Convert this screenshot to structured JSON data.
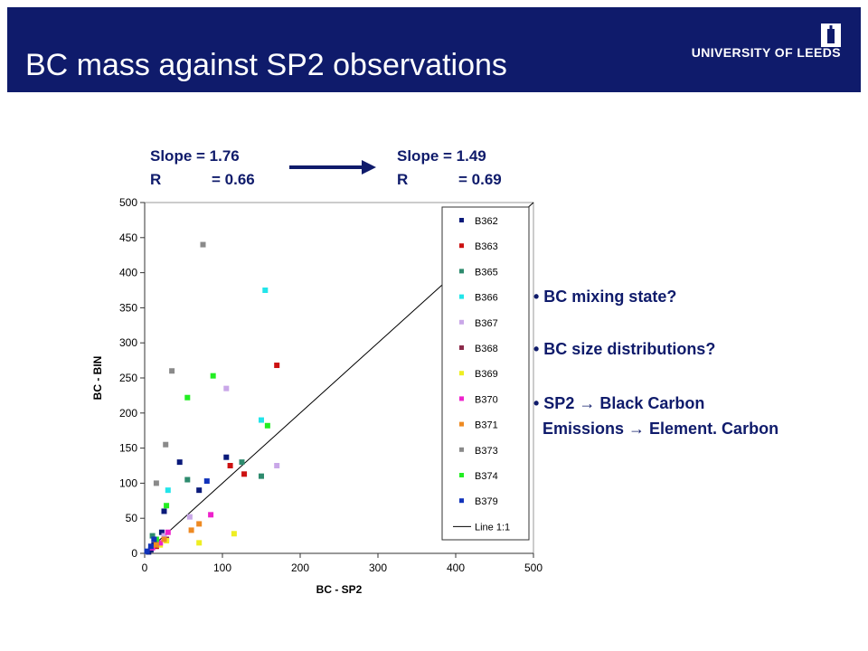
{
  "slide": {
    "title": "BC mass against SP2 observations",
    "logo_text": "UNIVERSITY OF LEEDS",
    "logo_icon": "leeds-tower-icon"
  },
  "stats": {
    "before": {
      "slope_label": "Slope = 1.76",
      "r_label_left": "R",
      "r_label_right": "= 0.66"
    },
    "after": {
      "slope_label": "Slope = 1.49",
      "r_label_left": "R",
      "r_label_right": "= 0.69"
    }
  },
  "bullets": [
    "• BC mixing state?",
    "• BC size distributions?",
    "• SP2 → Black Carbon",
    "Emissions → Element. Carbon"
  ],
  "colors": {
    "header_bg": "#0f1b6b",
    "text_blue": "#0f1b6b"
  },
  "chart_data": {
    "type": "scatter",
    "xlabel": "BC - SP2",
    "ylabel": "BC - BIN",
    "xlim": [
      0,
      500
    ],
    "ylim": [
      0,
      500
    ],
    "xticks": [
      0,
      100,
      200,
      300,
      400,
      500
    ],
    "yticks": [
      0,
      50,
      100,
      150,
      200,
      250,
      300,
      350,
      400,
      450,
      500
    ],
    "legend_position": "right-inside",
    "reference_line": {
      "name": "Line 1:1",
      "from": [
        0,
        0
      ],
      "to": [
        500,
        500
      ],
      "color": "#000000"
    },
    "series": [
      {
        "name": "B362",
        "color": "#0a1a7a",
        "points": [
          [
            5,
            2
          ],
          [
            8,
            5
          ],
          [
            12,
            12
          ],
          [
            22,
            30
          ],
          [
            25,
            60
          ],
          [
            45,
            130
          ],
          [
            70,
            90
          ],
          [
            105,
            137
          ]
        ]
      },
      {
        "name": "B363",
        "color": "#cc1111",
        "points": [
          [
            110,
            125
          ],
          [
            128,
            113
          ],
          [
            170,
            268
          ],
          [
            15,
            10
          ],
          [
            25,
            22
          ]
        ]
      },
      {
        "name": "B365",
        "color": "#2e8b6e",
        "points": [
          [
            10,
            25
          ],
          [
            55,
            105
          ],
          [
            125,
            130
          ],
          [
            150,
            110
          ]
        ]
      },
      {
        "name": "B366",
        "color": "#22e5ea",
        "points": [
          [
            30,
            90
          ],
          [
            150,
            190
          ],
          [
            155,
            375
          ]
        ]
      },
      {
        "name": "B367",
        "color": "#c9a7e8",
        "points": [
          [
            25,
            25
          ],
          [
            58,
            52
          ],
          [
            105,
            235
          ],
          [
            170,
            125
          ]
        ]
      },
      {
        "name": "B368",
        "color": "#8b2a4a",
        "points": [
          [
            15,
            12
          ],
          [
            28,
            20
          ]
        ]
      },
      {
        "name": "B369",
        "color": "#eeee22",
        "points": [
          [
            20,
            12
          ],
          [
            28,
            18
          ],
          [
            70,
            15
          ],
          [
            115,
            28
          ]
        ]
      },
      {
        "name": "B370",
        "color": "#ee22cc",
        "points": [
          [
            10,
            8
          ],
          [
            20,
            15
          ],
          [
            30,
            30
          ],
          [
            85,
            55
          ]
        ]
      },
      {
        "name": "B371",
        "color": "#ee8a22",
        "points": [
          [
            15,
            12
          ],
          [
            25,
            20
          ],
          [
            60,
            33
          ],
          [
            70,
            42
          ]
        ]
      },
      {
        "name": "B373",
        "color": "#8a8a8a",
        "points": [
          [
            15,
            100
          ],
          [
            27,
            155
          ],
          [
            35,
            260
          ],
          [
            75,
            440
          ]
        ]
      },
      {
        "name": "B374",
        "color": "#22ee22",
        "points": [
          [
            15,
            20
          ],
          [
            28,
            68
          ],
          [
            55,
            222
          ],
          [
            88,
            253
          ],
          [
            158,
            182
          ]
        ]
      },
      {
        "name": "B379",
        "color": "#1133bb",
        "points": [
          [
            3,
            3
          ],
          [
            8,
            10
          ],
          [
            12,
            20
          ],
          [
            80,
            103
          ]
        ]
      }
    ]
  }
}
